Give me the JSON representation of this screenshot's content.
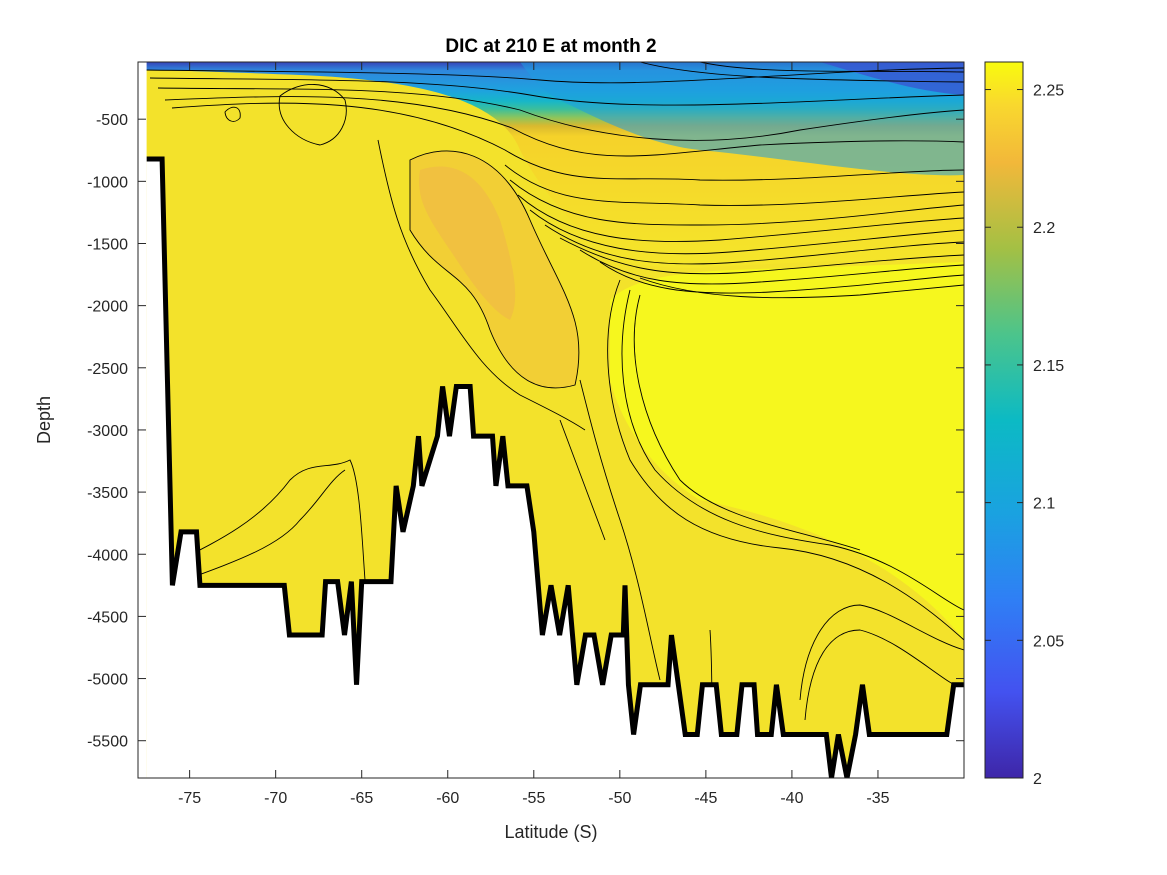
{
  "chart_data": {
    "type": "heatmap",
    "plot_style": "filled-contour section with black contour lines and a colorbar",
    "title": "DIC at 210 E at month 2",
    "xlabel": "Latitude (S)",
    "ylabel": "Depth",
    "xlim": [
      -78,
      -30
    ],
    "ylim": [
      -5800,
      -40
    ],
    "xticks": [
      -75,
      -70,
      -65,
      -60,
      -55,
      -50,
      -45,
      -40,
      -35
    ],
    "xtick_labels": [
      "-75",
      "-70",
      "-65",
      "-60",
      "-55",
      "-50",
      "-45",
      "-40",
      "-35"
    ],
    "yticks": [
      -500,
      -1000,
      -1500,
      -2000,
      -2500,
      -3000,
      -3500,
      -4000,
      -4500,
      -5000,
      -5500
    ],
    "ytick_labels": [
      "-500",
      "-1000",
      "-1500",
      "-2000",
      "-2500",
      "-3000",
      "-3500",
      "-4000",
      "-4500",
      "-5000",
      "-5500"
    ],
    "colorbar": {
      "clim": [
        2.0,
        2.26
      ],
      "ticks": [
        2,
        2.05,
        2.1,
        2.15,
        2.2,
        2.25
      ],
      "tick_labels": [
        "2",
        "2.05",
        "2.1",
        "2.15",
        "2.2",
        "2.25"
      ],
      "colormap": "parula"
    },
    "description_of_field": {
      "surface_north": 2.03,
      "upper_ocean_mid": 2.1,
      "thermocline_gradient_depth": [
        -800,
        -1800
      ],
      "intermediate_max_south_of_55S": 2.22,
      "deep_water": 2.25
    },
    "bathymetry": [
      [
        -77.5,
        -820
      ],
      [
        -76.6,
        -820
      ],
      [
        -76.0,
        -4250
      ],
      [
        -75.5,
        -3820
      ],
      [
        -74.6,
        -3820
      ],
      [
        -74.4,
        -4250
      ],
      [
        -69.5,
        -4250
      ],
      [
        -69.2,
        -4650
      ],
      [
        -67.3,
        -4650
      ],
      [
        -67.1,
        -4220
      ],
      [
        -66.4,
        -4220
      ],
      [
        -66.0,
        -4650
      ],
      [
        -65.6,
        -4220
      ],
      [
        -65.3,
        -5050
      ],
      [
        -65.0,
        -4220
      ],
      [
        -63.3,
        -4220
      ],
      [
        -63.0,
        -3450
      ],
      [
        -62.6,
        -3820
      ],
      [
        -62.0,
        -3450
      ],
      [
        -61.7,
        -3050
      ],
      [
        -61.5,
        -3450
      ],
      [
        -60.6,
        -3050
      ],
      [
        -60.3,
        -2650
      ],
      [
        -59.9,
        -3050
      ],
      [
        -59.5,
        -2650
      ],
      [
        -58.7,
        -2650
      ],
      [
        -58.5,
        -3050
      ],
      [
        -57.4,
        -3050
      ],
      [
        -57.2,
        -3450
      ],
      [
        -56.8,
        -3050
      ],
      [
        -56.5,
        -3450
      ],
      [
        -55.4,
        -3450
      ],
      [
        -55.0,
        -3820
      ],
      [
        -54.5,
        -4650
      ],
      [
        -54.0,
        -4250
      ],
      [
        -53.5,
        -4650
      ],
      [
        -53.0,
        -4250
      ],
      [
        -52.5,
        -5050
      ],
      [
        -52.0,
        -4650
      ],
      [
        -51.5,
        -4650
      ],
      [
        -51.0,
        -5050
      ],
      [
        -50.5,
        -4650
      ],
      [
        -49.8,
        -4650
      ],
      [
        -49.7,
        -4250
      ],
      [
        -49.5,
        -5050
      ],
      [
        -49.2,
        -5450
      ],
      [
        -48.8,
        -5050
      ],
      [
        -47.2,
        -5050
      ],
      [
        -47.0,
        -4650
      ],
      [
        -46.6,
        -5050
      ],
      [
        -46.2,
        -5450
      ],
      [
        -45.5,
        -5450
      ],
      [
        -45.2,
        -5050
      ],
      [
        -44.4,
        -5050
      ],
      [
        -44.1,
        -5450
      ],
      [
        -43.2,
        -5450
      ],
      [
        -42.9,
        -5050
      ],
      [
        -42.2,
        -5050
      ],
      [
        -42.0,
        -5450
      ],
      [
        -41.2,
        -5450
      ],
      [
        -40.9,
        -5050
      ],
      [
        -40.5,
        -5450
      ],
      [
        -38.0,
        -5450
      ],
      [
        -37.7,
        -5800
      ],
      [
        -37.3,
        -5450
      ],
      [
        -36.8,
        -5800
      ],
      [
        -36.3,
        -5450
      ],
      [
        -35.9,
        -5050
      ],
      [
        -35.5,
        -5450
      ],
      [
        -31.0,
        -5450
      ],
      [
        -30.6,
        -5050
      ],
      [
        -30.0,
        -5050
      ]
    ]
  }
}
